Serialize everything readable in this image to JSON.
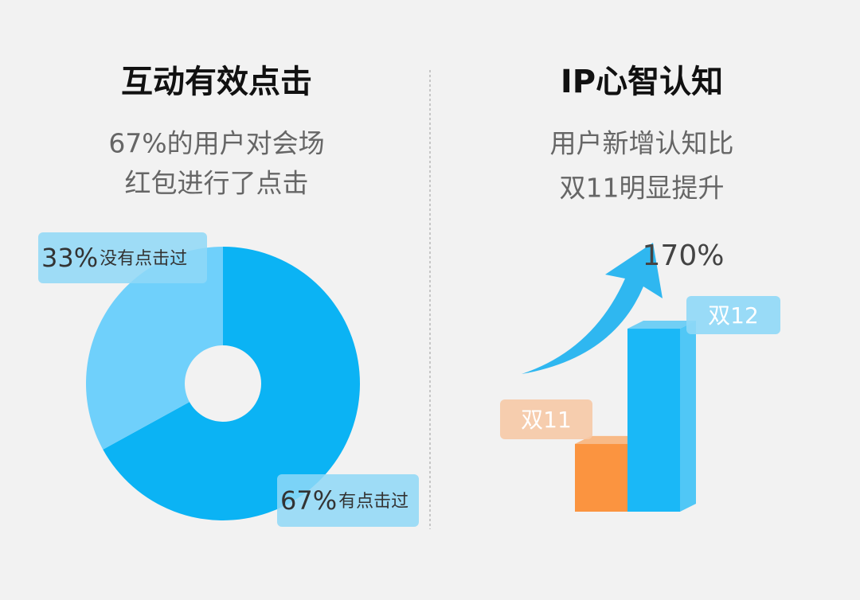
{
  "chart_data": [
    {
      "type": "pie",
      "title": "互动有效点击",
      "subtitle": [
        "67%的用户对会场",
        "红包进行了点击"
      ],
      "categories": [
        "有点击过",
        "没有点击过"
      ],
      "values": [
        67,
        33
      ],
      "value_labels": [
        "67%",
        "33%"
      ],
      "colors": [
        "#0bb3f4",
        "#6fd0fb"
      ]
    },
    {
      "type": "bar",
      "title": "IP心智认知",
      "subtitle": [
        "用户新增认知比",
        "双11明显提升"
      ],
      "categories": [
        "双11",
        "双12"
      ],
      "values": [
        100,
        270
      ],
      "colors": [
        "#fb9440",
        "#1ab8f7"
      ],
      "ylim": [
        0,
        290
      ],
      "annotation": "170%"
    }
  ]
}
